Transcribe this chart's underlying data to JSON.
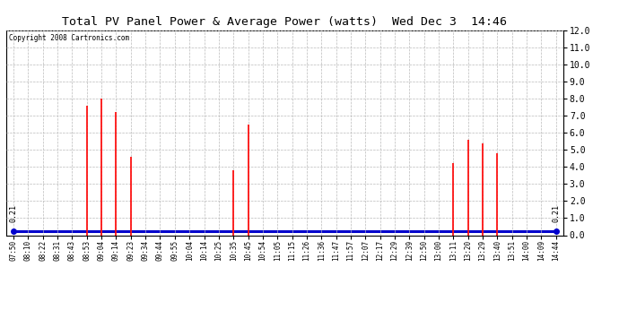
{
  "title": "Total PV Panel Power & Average Power (watts)  Wed Dec 3  14:46",
  "copyright": "Copyright 2008 Cartronics.com",
  "ylim": [
    0.0,
    12.0
  ],
  "yticks": [
    0.0,
    1.0,
    2.0,
    3.0,
    4.0,
    5.0,
    6.0,
    7.0,
    8.0,
    9.0,
    10.0,
    11.0,
    12.0
  ],
  "avg_line_y": 0.21,
  "avg_label": "0.21",
  "background_color": "#ffffff",
  "plot_bg_color": "#ffffff",
  "grid_color": "#bbbbbb",
  "bar_color": "#ff0000",
  "line_color": "#0000cc",
  "x_labels": [
    "07:50",
    "08:10",
    "08:22",
    "08:31",
    "08:43",
    "08:53",
    "09:04",
    "09:14",
    "09:23",
    "09:34",
    "09:44",
    "09:55",
    "10:04",
    "10:14",
    "10:25",
    "10:35",
    "10:45",
    "10:54",
    "11:05",
    "11:15",
    "11:26",
    "11:36",
    "11:47",
    "11:57",
    "12:07",
    "12:17",
    "12:29",
    "12:39",
    "12:50",
    "13:00",
    "13:11",
    "13:20",
    "13:29",
    "13:40",
    "13:51",
    "14:00",
    "14:09",
    "14:44"
  ],
  "spike_x_indices": [
    5,
    6,
    7,
    8,
    15,
    16,
    30,
    31,
    32,
    33
  ],
  "spike_values": [
    7.6,
    8.0,
    7.2,
    4.6,
    3.8,
    6.5,
    4.2,
    5.6,
    5.4,
    4.8
  ],
  "figwidth": 6.9,
  "figheight": 3.75,
  "dpi": 100
}
